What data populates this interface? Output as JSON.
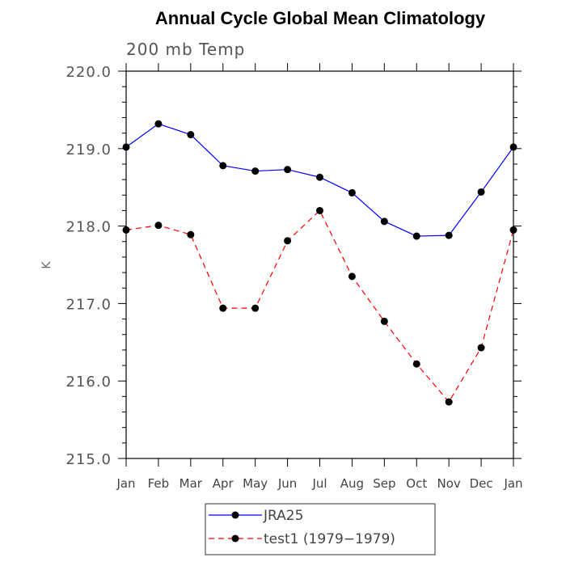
{
  "chart_data": {
    "type": "line",
    "title": "Annual Cycle Global Mean Climatology",
    "subtitle": "200 mb Temp",
    "xlabel": "",
    "ylabel": "K",
    "categories": [
      "Jan",
      "Feb",
      "Mar",
      "Apr",
      "May",
      "Jun",
      "Jul",
      "Aug",
      "Sep",
      "Oct",
      "Nov",
      "Dec",
      "Jan"
    ],
    "ylim": [
      215.0,
      220.0
    ],
    "yticks": [
      "215.0",
      "216.0",
      "217.0",
      "218.0",
      "219.0",
      "220.0"
    ],
    "series": [
      {
        "name": "JRA25",
        "color": "#0000ff",
        "dashed": false,
        "values": [
          219.02,
          219.32,
          219.18,
          218.78,
          218.71,
          218.73,
          218.63,
          218.43,
          218.06,
          217.87,
          217.88,
          218.44,
          219.02
        ]
      },
      {
        "name": "test1 (1979−1979)",
        "color": "#ff0000",
        "dashed": true,
        "values": [
          217.95,
          218.01,
          217.89,
          216.94,
          216.94,
          217.81,
          218.2,
          217.35,
          216.77,
          216.22,
          215.73,
          216.43,
          217.95
        ]
      }
    ]
  }
}
